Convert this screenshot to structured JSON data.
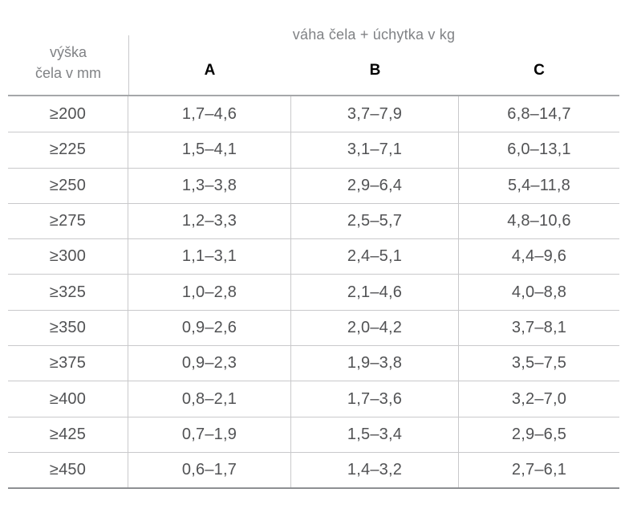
{
  "table": {
    "title": "váha čela + úchytka v kg",
    "row_header_line1": "výška",
    "row_header_line2": "čela v mm",
    "columns": [
      "A",
      "B",
      "C"
    ],
    "rows": [
      {
        "label": "≥200",
        "values": [
          "1,7–4,6",
          "3,7–7,9",
          "6,8–14,7"
        ]
      },
      {
        "label": "≥225",
        "values": [
          "1,5–4,1",
          "3,1–7,1",
          "6,0–13,1"
        ]
      },
      {
        "label": "≥250",
        "values": [
          "1,3–3,8",
          "2,9–6,4",
          "5,4–11,8"
        ]
      },
      {
        "label": "≥275",
        "values": [
          "1,2–3,3",
          "2,5–5,7",
          "4,8–10,6"
        ]
      },
      {
        "label": "≥300",
        "values": [
          "1,1–3,1",
          "2,4–5,1",
          "4,4–9,6"
        ]
      },
      {
        "label": "≥325",
        "values": [
          "1,0–2,8",
          "2,1–4,6",
          "4,0–8,8"
        ]
      },
      {
        "label": "≥350",
        "values": [
          "0,9–2,6",
          "2,0–4,2",
          "3,7–8,1"
        ]
      },
      {
        "label": "≥375",
        "values": [
          "0,9–2,3",
          "1,9–3,8",
          "3,5–7,5"
        ]
      },
      {
        "label": "≥400",
        "values": [
          "0,8–2,1",
          "1,7–3,6",
          "3,2–7,0"
        ]
      },
      {
        "label": "≥425",
        "values": [
          "0,7–1,9",
          "1,5–3,4",
          "2,9–6,5"
        ]
      },
      {
        "label": "≥450",
        "values": [
          "0,6–1,7",
          "1,4–3,2",
          "2,7–6,1"
        ]
      }
    ]
  },
  "colors": {
    "header_text": "#808285",
    "column_header_text": "#000000",
    "data_text": "#515254",
    "grid_line": "#c9c9cb",
    "header_rule": "#a5a7aa",
    "bottom_rule": "#8e9093"
  }
}
